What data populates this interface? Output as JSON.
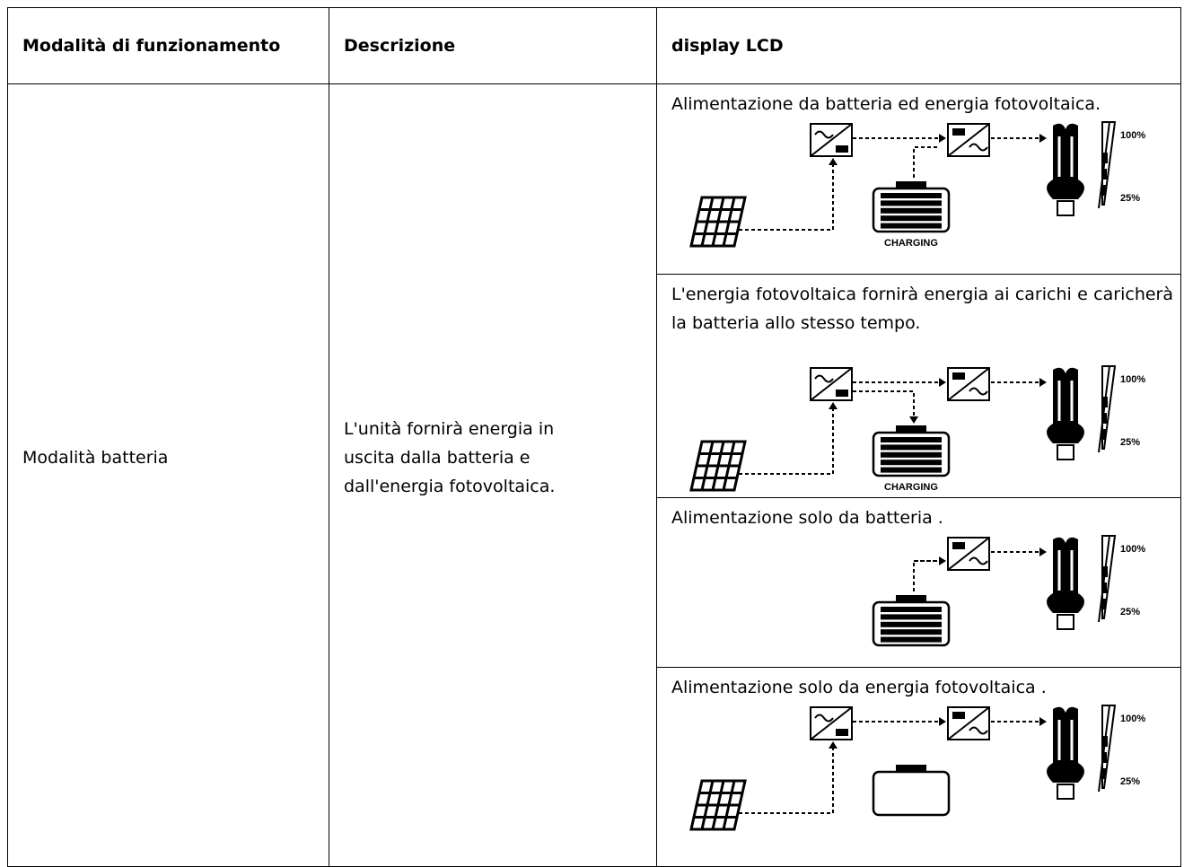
{
  "table": {
    "header": [
      "Modalità di funzionamento",
      "Descrizione",
      "display LCD"
    ],
    "mode": "Modalità batteria",
    "description": [
      "L'unità fornirà energia in",
      "uscita dalla batteria e",
      "dall'energia fotovoltaica."
    ],
    "lcd": [
      {
        "text": "Alimentazione da batteria ed energia fotovoltaica.",
        "diagram": {
          "charging_label": "CHARGING",
          "max_label": "100%",
          "min_label": "25%"
        }
      },
      {
        "text": "L'energia fotovoltaica fornirà energia ai carichi e caricherà la batteria allo stesso tempo.",
        "diagram": {
          "charging_label": "CHARGING",
          "max_label": "100%",
          "min_label": "25%"
        }
      },
      {
        "text": "Alimentazione solo da batteria .",
        "diagram": {
          "max_label": "100%",
          "min_label": "25%"
        }
      },
      {
        "text": "Alimentazione solo da energia fotovoltaica .",
        "diagram": {
          "max_label": "100%",
          "min_label": "25%"
        }
      }
    ]
  }
}
